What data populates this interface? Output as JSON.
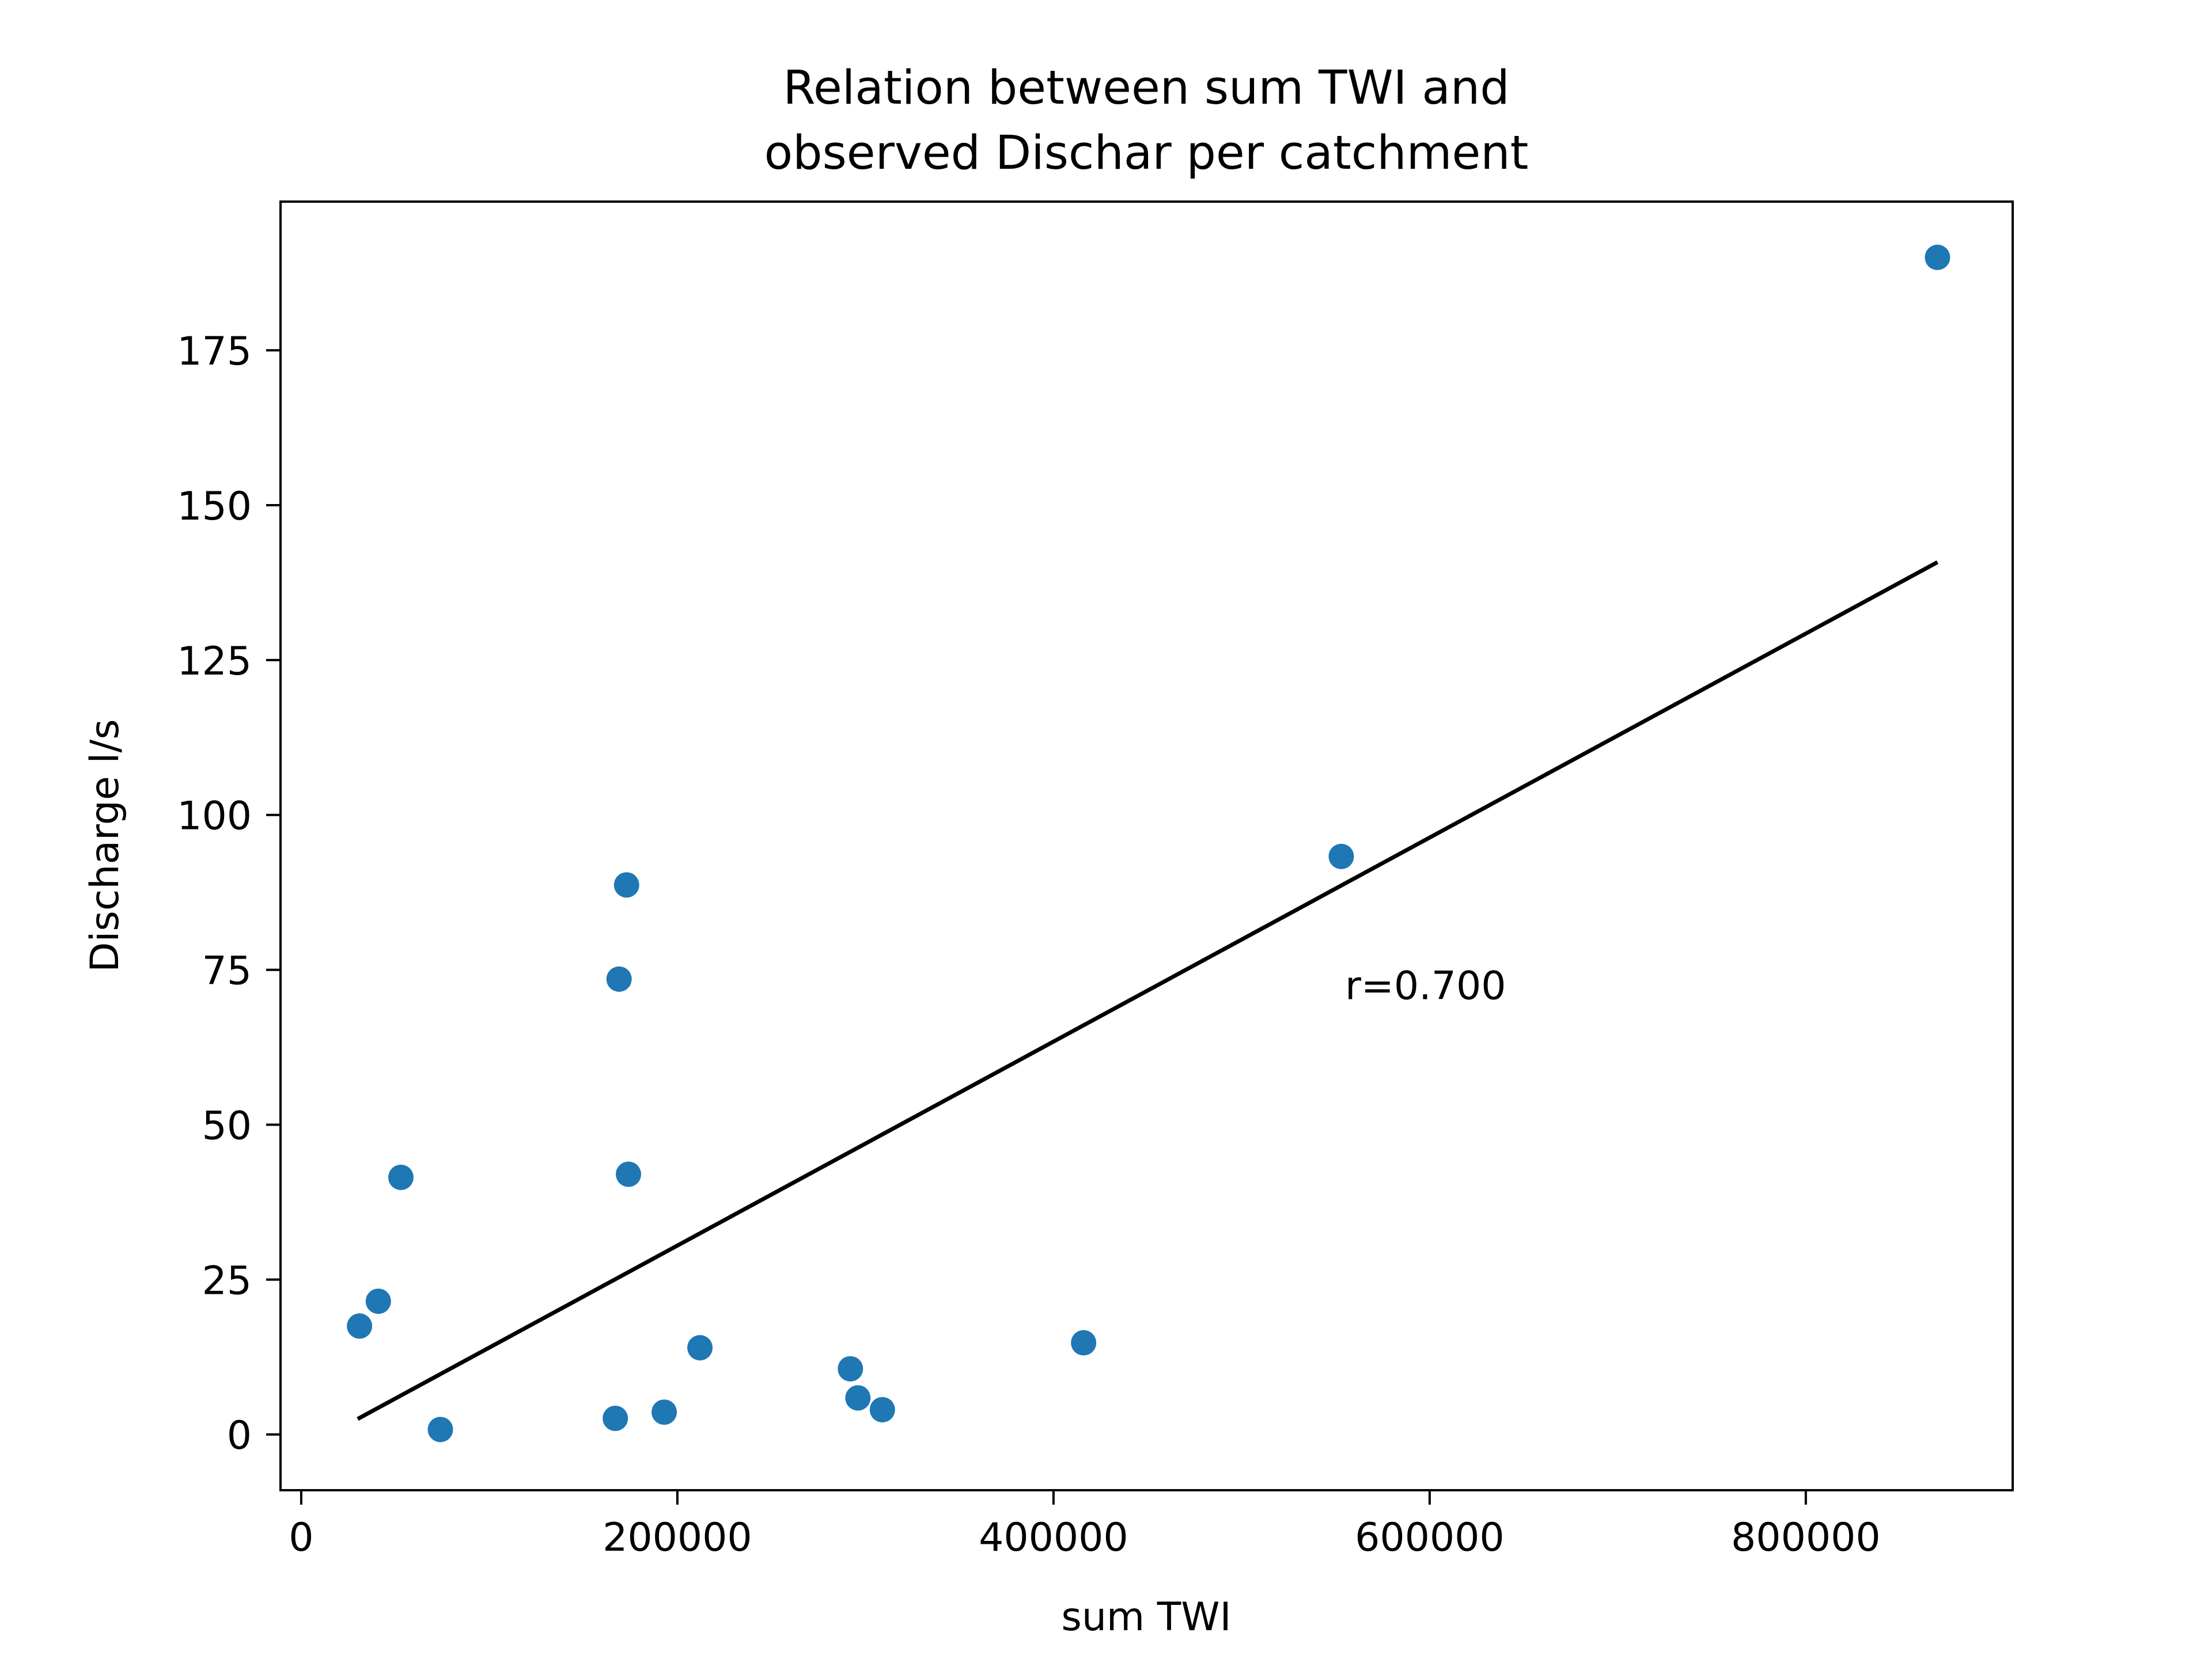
{
  "chart_data": {
    "type": "scatter",
    "title_lines": [
      "Relation between sum TWI and",
      "observed Dischar per catchment"
    ],
    "xlabel": "sum TWI",
    "ylabel": "Discharge l/s",
    "xlim": [
      -11000,
      910000
    ],
    "ylim": [
      -9,
      199
    ],
    "xticks": [
      0,
      200000,
      400000,
      600000,
      800000
    ],
    "xtick_labels": [
      "0",
      "200000",
      "400000",
      "600000",
      "800000"
    ],
    "yticks": [
      0,
      25,
      50,
      75,
      100,
      125,
      150,
      175
    ],
    "ytick_labels": [
      "0",
      "25",
      "50",
      "75",
      "100",
      "125",
      "150",
      "175"
    ],
    "grid": false,
    "point_color": "#1f77b4",
    "line_color": "#000000",
    "points": [
      {
        "x": 31000,
        "y": 17.5
      },
      {
        "x": 41000,
        "y": 21.5
      },
      {
        "x": 53000,
        "y": 41.5
      },
      {
        "x": 74000,
        "y": 0.8
      },
      {
        "x": 167000,
        "y": 2.6
      },
      {
        "x": 169000,
        "y": 73.5
      },
      {
        "x": 173000,
        "y": 88.7
      },
      {
        "x": 174000,
        "y": 42.0
      },
      {
        "x": 193000,
        "y": 3.6
      },
      {
        "x": 212000,
        "y": 14.0
      },
      {
        "x": 292000,
        "y": 10.6
      },
      {
        "x": 296000,
        "y": 5.9
      },
      {
        "x": 309000,
        "y": 4.0
      },
      {
        "x": 416000,
        "y": 14.8
      },
      {
        "x": 553000,
        "y": 93.3
      },
      {
        "x": 870000,
        "y": 190.0
      }
    ],
    "regression_line": {
      "x": [
        30000,
        870000
      ],
      "y": [
        2.5,
        140.8
      ]
    },
    "annotation": {
      "text": "r=0.700",
      "x": 555000,
      "y": 72.5
    }
  }
}
